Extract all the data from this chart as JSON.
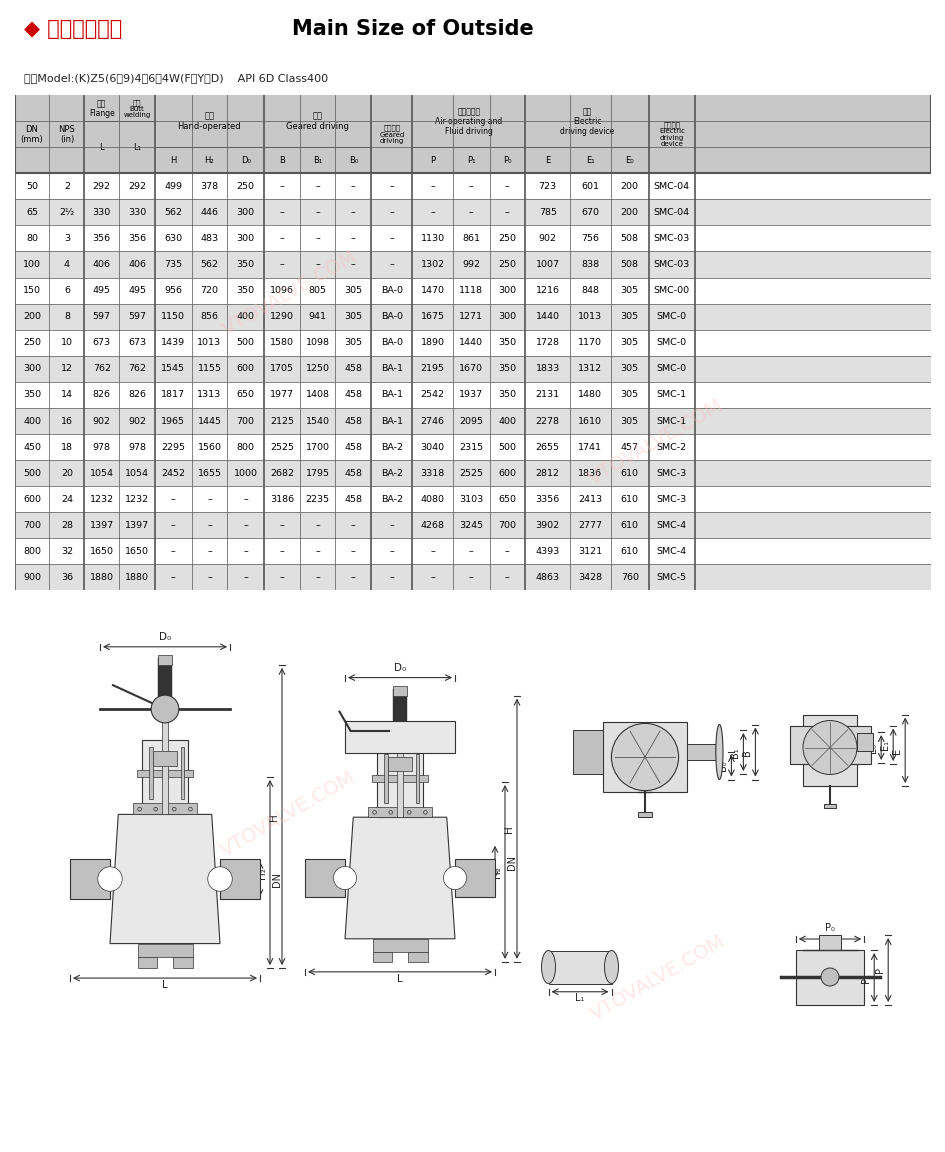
{
  "title_zh": "◆ 主要外形尺寸",
  "title_en": "Main Size of Outside",
  "subtitle": "型号Model:(K)Z5(6、9)4（6）4W(F、Y、D)    API 6D Class400",
  "rows": [
    [
      "50",
      "2",
      "292",
      "292",
      "499",
      "378",
      "250",
      "–",
      "–",
      "–",
      "–",
      "–",
      "–",
      "–",
      "723",
      "601",
      "200",
      "SMC-04"
    ],
    [
      "65",
      "2¹⁄₂",
      "330",
      "330",
      "562",
      "446",
      "300",
      "–",
      "–",
      "–",
      "–",
      "–",
      "–",
      "–",
      "785",
      "670",
      "200",
      "SMC-04"
    ],
    [
      "80",
      "3",
      "356",
      "356",
      "630",
      "483",
      "300",
      "–",
      "–",
      "–",
      "–",
      "1130",
      "861",
      "250",
      "902",
      "756",
      "508",
      "SMC-03"
    ],
    [
      "100",
      "4",
      "406",
      "406",
      "735",
      "562",
      "350",
      "–",
      "–",
      "–",
      "–",
      "1302",
      "992",
      "250",
      "1007",
      "838",
      "508",
      "SMC-03"
    ],
    [
      "150",
      "6",
      "495",
      "495",
      "956",
      "720",
      "350",
      "1096",
      "805",
      "305",
      "BA-0",
      "1470",
      "1118",
      "300",
      "1216",
      "848",
      "305",
      "SMC-00"
    ],
    [
      "200",
      "8",
      "597",
      "597",
      "1150",
      "856",
      "400",
      "1290",
      "941",
      "305",
      "BA-0",
      "1675",
      "1271",
      "300",
      "1440",
      "1013",
      "305",
      "SMC-0"
    ],
    [
      "250",
      "10",
      "673",
      "673",
      "1439",
      "1013",
      "500",
      "1580",
      "1098",
      "305",
      "BA-0",
      "1890",
      "1440",
      "350",
      "1728",
      "1170",
      "305",
      "SMC-0"
    ],
    [
      "300",
      "12",
      "762",
      "762",
      "1545",
      "1155",
      "600",
      "1705",
      "1250",
      "458",
      "BA-1",
      "2195",
      "1670",
      "350",
      "1833",
      "1312",
      "305",
      "SMC-0"
    ],
    [
      "350",
      "14",
      "826",
      "826",
      "1817",
      "1313",
      "650",
      "1977",
      "1408",
      "458",
      "BA-1",
      "2542",
      "1937",
      "350",
      "2131",
      "1480",
      "305",
      "SMC-1"
    ],
    [
      "400",
      "16",
      "902",
      "902",
      "1965",
      "1445",
      "700",
      "2125",
      "1540",
      "458",
      "BA-1",
      "2746",
      "2095",
      "400",
      "2278",
      "1610",
      "305",
      "SMC-1"
    ],
    [
      "450",
      "18",
      "978",
      "978",
      "2295",
      "1560",
      "800",
      "2525",
      "1700",
      "458",
      "BA-2",
      "3040",
      "2315",
      "500",
      "2655",
      "1741",
      "457",
      "SMC-2"
    ],
    [
      "500",
      "20",
      "1054",
      "1054",
      "2452",
      "1655",
      "1000",
      "2682",
      "1795",
      "458",
      "BA-2",
      "3318",
      "2525",
      "600",
      "2812",
      "1836",
      "610",
      "SMC-3"
    ],
    [
      "600",
      "24",
      "1232",
      "1232",
      "–",
      "–",
      "–",
      "3186",
      "2235",
      "458",
      "BA-2",
      "4080",
      "3103",
      "650",
      "3356",
      "2413",
      "610",
      "SMC-3"
    ],
    [
      "700",
      "28",
      "1397",
      "1397",
      "–",
      "–",
      "–",
      "–",
      "–",
      "–",
      "–",
      "4268",
      "3245",
      "700",
      "3902",
      "2777",
      "610",
      "SMC-4"
    ],
    [
      "800",
      "32",
      "1650",
      "1650",
      "–",
      "–",
      "–",
      "–",
      "–",
      "–",
      "–",
      "–",
      "–",
      "–",
      "4393",
      "3121",
      "610",
      "SMC-4"
    ],
    [
      "900",
      "36",
      "1880",
      "1880",
      "–",
      "–",
      "–",
      "–",
      "–",
      "–",
      "–",
      "–",
      "–",
      "–",
      "4863",
      "3428",
      "760",
      "SMC-5"
    ]
  ],
  "shaded_rows": [
    1,
    3,
    5,
    7,
    9,
    11,
    13,
    15
  ],
  "header_bg": "#c8c8c8",
  "shaded_bg": "#e0e0e0",
  "white_bg": "#ffffff",
  "border_col": "#555555",
  "title_color_zh": "#cc0000",
  "title_color_en": "#000000"
}
